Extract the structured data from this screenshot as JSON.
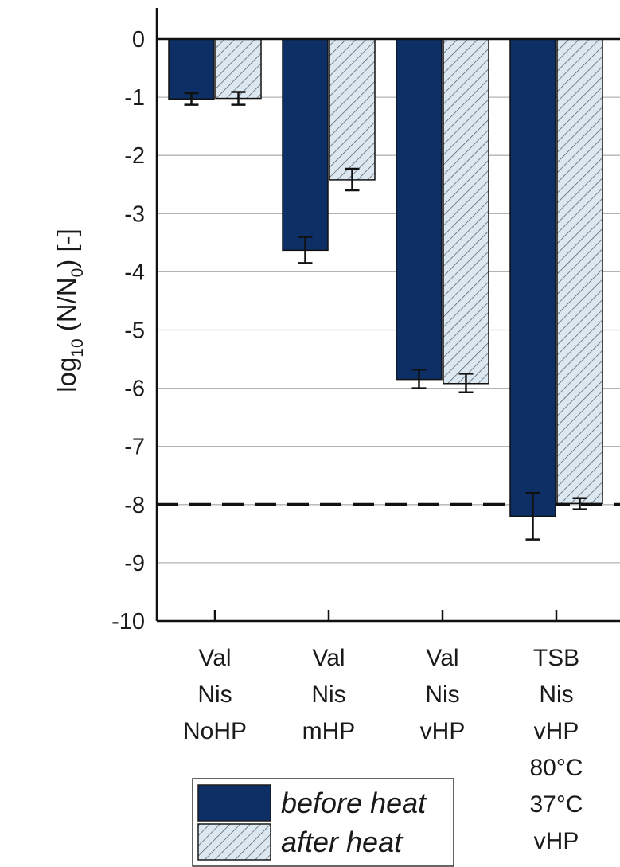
{
  "chart_data": {
    "type": "bar",
    "title": "",
    "xlabel": "",
    "ylabel": {
      "prefix": "log",
      "subscript": "10",
      "middle": " (N/N",
      "subscript2": "0",
      "suffix": ") [-]"
    },
    "ylim": [
      -10,
      0
    ],
    "yticks": [
      0,
      -1,
      -2,
      -3,
      -4,
      -5,
      -6,
      -7,
      -8,
      -9,
      -10
    ],
    "grid": true,
    "reference_line": {
      "value": -8,
      "style": "dashed"
    },
    "categories": [
      {
        "lines": [
          "Val",
          "Nis",
          "NoHP"
        ]
      },
      {
        "lines": [
          "Val",
          "Nis",
          "mHP"
        ]
      },
      {
        "lines": [
          "Val",
          "Nis",
          "vHP"
        ]
      },
      {
        "lines": [
          "TSB",
          "Nis",
          "vHP",
          "80°C",
          "37°C",
          "vHP"
        ]
      }
    ],
    "series": [
      {
        "name": "before heat",
        "color": "#0d2f66",
        "pattern": "solid",
        "values": [
          -1.03,
          -3.63,
          -5.85,
          -8.2
        ],
        "err_low": [
          -1.13,
          -3.85,
          -6.0,
          -8.6
        ],
        "err_high": [
          -0.93,
          -3.4,
          -5.68,
          -7.8
        ]
      },
      {
        "name": "after heat",
        "color": "#dbe8f2",
        "pattern": "hatched",
        "values": [
          -1.02,
          -2.42,
          -5.92,
          -7.98
        ],
        "err_low": [
          -1.13,
          -2.6,
          -6.07,
          -8.08
        ],
        "err_high": [
          -0.91,
          -2.23,
          -5.75,
          -7.89
        ]
      }
    ],
    "legend": {
      "position": "bottom-left"
    }
  }
}
